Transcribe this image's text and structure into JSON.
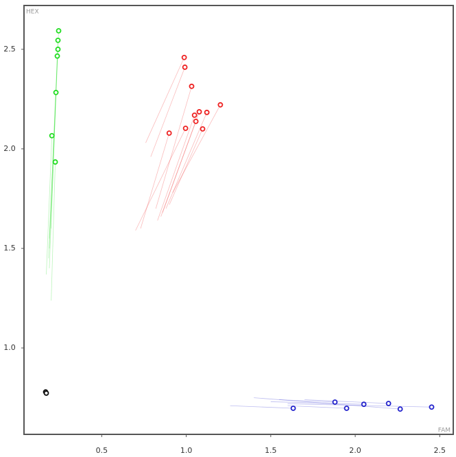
{
  "chart_data": {
    "type": "scatter",
    "xlabel": "FAM",
    "ylabel": "HEX",
    "xlim": [
      0.04,
      2.58
    ],
    "ylim": [
      0.566,
      2.72
    ],
    "xticks": [
      0.5,
      {
        "value": 1,
        "label": "1.0"
      },
      1.5,
      {
        "value": 2,
        "label": "2.0"
      },
      2.5
    ],
    "yticks": [
      {
        "value": 1,
        "label": "1.0"
      },
      1.5,
      {
        "value": 2,
        "label": "2.0"
      },
      2.5
    ],
    "series": [
      {
        "color": "#22dd22",
        "x": [
          0.245,
          0.241,
          0.241,
          0.237,
          0.229,
          0.205,
          0.225
        ],
        "values": [
          2.593,
          2.545,
          2.5,
          2.466,
          2.283,
          2.066,
          1.934
        ],
        "trail_x": [
          0.185,
          0.19,
          0.19,
          0.19,
          0.2,
          0.172,
          0.201
        ],
        "trail_y": [
          1.45,
          1.4,
          1.5,
          1.55,
          1.6,
          1.369,
          1.238
        ]
      },
      {
        "color": "#ee2222",
        "x": [
          0.988,
          0.992,
          1.032,
          1.202,
          1.077,
          1.049,
          1.122,
          1.057,
          0.996,
          1.097,
          0.899
        ],
        "values": [
          2.459,
          2.41,
          2.314,
          2.221,
          2.186,
          2.169,
          2.183,
          2.138,
          2.103,
          2.1,
          2.079
        ],
        "trail_x": [
          0.76,
          0.79,
          0.82,
          0.92,
          0.85,
          0.83,
          0.88,
          0.86,
          0.7,
          0.9,
          0.73
        ],
        "trail_y": [
          2.03,
          1.96,
          1.7,
          1.78,
          1.66,
          1.64,
          1.7,
          1.68,
          1.59,
          1.72,
          1.6
        ]
      },
      {
        "color": "#2222cc",
        "x": [
          1.633,
          1.88,
          1.949,
          2.051,
          2.197,
          2.266,
          2.452
        ],
        "values": [
          0.697,
          0.728,
          0.697,
          0.717,
          0.721,
          0.693,
          0.703
        ],
        "trail_x": [
          1.26,
          1.55,
          1.6,
          1.5,
          1.7,
          1.4,
          1.6
        ],
        "trail_y": [
          0.71,
          0.74,
          0.71,
          0.73,
          0.74,
          0.75,
          0.72
        ]
      },
      {
        "color": "#111111",
        "x": [
          0.168,
          0.172
        ],
        "values": [
          0.779,
          0.773
        ]
      }
    ]
  }
}
